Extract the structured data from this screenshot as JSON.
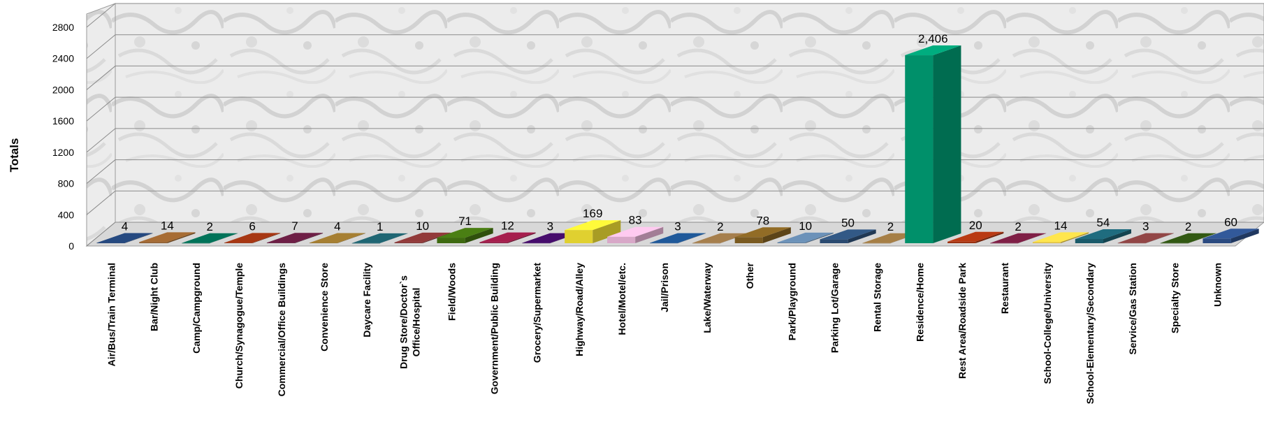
{
  "chart_data": {
    "type": "bar",
    "title": "",
    "xlabel": "",
    "ylabel": "Totals",
    "ylim": [
      0,
      2800
    ],
    "yticks": [
      0,
      400,
      800,
      1200,
      1600,
      2000,
      2400,
      2800
    ],
    "grid": true,
    "legend": "none",
    "style": "3d-column",
    "categories": [
      "Air/Bus/Train Terminal",
      "Bar/Night Club",
      "Camp/Campground",
      "Church/Synagogue/Temple",
      "Commercial/Office Buildings",
      "Convenience Store",
      "Daycare Facility",
      "Drug Store/Doctor`s Office/Hospital",
      "Field/Woods",
      "Government/Public Building",
      "Grocery/Supermarket",
      "Highway/Road/Alley",
      "Hotel/Motel/etc.",
      "Jail/Prison",
      "Lake/Waterway",
      "Other",
      "Park/Playground",
      "Parking Lot/Garage",
      "Rental Storage",
      "Residence/Home",
      "Rest Area/Roadside Park",
      "Restaurant",
      "School-College/University",
      "School-Elementary/Secondary",
      "Service/Gas Station",
      "Specialty Store",
      "Unknown"
    ],
    "values": [
      4,
      14,
      2,
      6,
      7,
      4,
      1,
      10,
      71,
      12,
      3,
      169,
      83,
      3,
      2,
      78,
      10,
      50,
      2,
      2406,
      20,
      2,
      14,
      54,
      3,
      2,
      60
    ],
    "data_labels": [
      "4",
      "14",
      "2",
      "6",
      "7",
      "4",
      "1",
      "10",
      "71",
      "12",
      "3",
      "169",
      "83",
      "3",
      "2",
      "78",
      "10",
      "50",
      "2",
      "2,406",
      "20",
      "2",
      "14",
      "54",
      "3",
      "2",
      "60"
    ],
    "colors": [
      "#1F3D6B",
      "#8B5A2B",
      "#00604A",
      "#8B2E10",
      "#5C1A3A",
      "#8A6A2A",
      "#1A5560",
      "#7A3030",
      "#3E6A10",
      "#8A1A40",
      "#3A0A5A",
      "#E0D030",
      "#D8A8C8",
      "#1A4A80",
      "#8A6A40",
      "#7A5A20",
      "#5A7A9A",
      "#2A4A70",
      "#8A6A3A",
      "#00906A",
      "#9A3010",
      "#6A1A3A",
      "#E0C040",
      "#1A5A6A",
      "#7A3A3A",
      "#2A4A10",
      "#2A4A80"
    ]
  }
}
